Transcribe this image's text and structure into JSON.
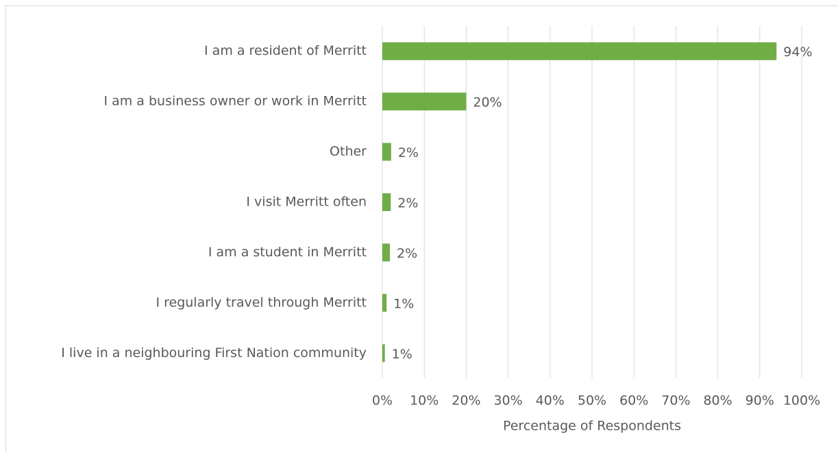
{
  "chart_data": {
    "type": "barh",
    "categories": [
      "I am a resident of Merritt",
      "I am a business owner or work in Merritt",
      "Other",
      "I visit Merritt often",
      "I am a student in Merritt",
      "I regularly travel through Merritt",
      "I live in a neighbouring First Nation community"
    ],
    "values": [
      94,
      20,
      2.1,
      2.0,
      1.8,
      1.0,
      0.6
    ],
    "value_labels": [
      "94%",
      "20%",
      "2%",
      "2%",
      "2%",
      "1%",
      "1%"
    ],
    "color": "#70ad47",
    "xlabel": "Percentage of Respondents",
    "xlim": [
      0,
      100
    ],
    "xticks": [
      {
        "value": 0,
        "label": "0%"
      },
      {
        "value": 10,
        "label": "10%"
      },
      {
        "value": 20,
        "label": "20%"
      },
      {
        "value": 30,
        "label": "30%"
      },
      {
        "value": 40,
        "label": "40%"
      },
      {
        "value": 50,
        "label": "50%"
      },
      {
        "value": 60,
        "label": "60%"
      },
      {
        "value": 70,
        "label": "70%"
      },
      {
        "value": 80,
        "label": "80%"
      },
      {
        "value": 90,
        "label": "90%"
      },
      {
        "value": 100,
        "label": "100%"
      }
    ],
    "grid": true
  }
}
